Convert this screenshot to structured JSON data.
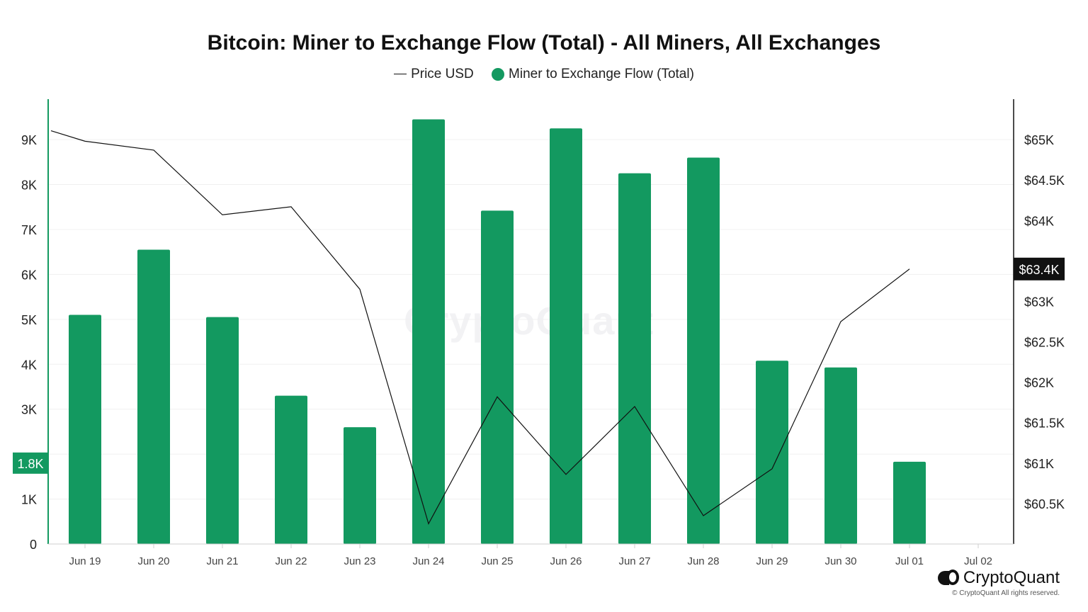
{
  "title": "Bitcoin: Miner to Exchange Flow (Total) - All Miners, All Exchanges",
  "legend": {
    "price_label": "Price USD",
    "flow_label": "Miner to Exchange Flow (Total)"
  },
  "colors": {
    "bar": "#139960",
    "price_line": "#111111",
    "left_axis": "#139960",
    "right_axis": "#111111"
  },
  "watermark": "CryptoQuant",
  "brand": {
    "name": "CryptoQuant",
    "copyright": "© CryptoQuant All rights reserved."
  },
  "chart_data": {
    "type": "bar",
    "title": "Bitcoin: Miner to Exchange Flow (Total) - All Miners, All Exchanges",
    "categories": [
      "Jun 19",
      "Jun 20",
      "Jun 21",
      "Jun 22",
      "Jun 23",
      "Jun 24",
      "Jun 25",
      "Jun 26",
      "Jun 27",
      "Jun 28",
      "Jun 29",
      "Jun 30",
      "Jul 01",
      "Jul 02"
    ],
    "left_axis": {
      "ylim": [
        0,
        9900
      ],
      "ticks": [
        0,
        1000,
        2000,
        3000,
        4000,
        5000,
        6000,
        7000,
        8000,
        9000
      ],
      "tick_labels": [
        "0",
        "1K",
        "",
        "3K",
        "4K",
        "5K",
        "6K",
        "7K",
        "8K",
        "9K"
      ],
      "current_value_label": "1.8K",
      "current_value": 1800
    },
    "right_axis": {
      "ylim": [
        60000,
        65500
      ],
      "ticks": [
        60500,
        61000,
        61500,
        62000,
        62500,
        63000,
        63500,
        64000,
        64500,
        65000
      ],
      "tick_labels": [
        "$60.5K",
        "$61K",
        "$61.5K",
        "$62K",
        "$62.5K",
        "$63K",
        "",
        "$64K",
        "$64.5K",
        "$65K"
      ],
      "current_value_label": "$63.4K",
      "current_value": 63400
    },
    "series": [
      {
        "name": "Miner to Exchange Flow (Total)",
        "type": "bar",
        "axis": "left",
        "values": [
          5100,
          6550,
          5050,
          3300,
          2600,
          9450,
          7420,
          9250,
          8250,
          8600,
          4080,
          3930,
          1830,
          null
        ]
      },
      {
        "name": "Price USD",
        "type": "line",
        "axis": "right",
        "points": [
          {
            "x": "Jun 18 12:00",
            "y": 65110
          },
          {
            "x": "Jun 19",
            "y": 64980
          },
          {
            "x": "Jun 20",
            "y": 64870
          },
          {
            "x": "Jun 21",
            "y": 64070
          },
          {
            "x": "Jun 22",
            "y": 64170
          },
          {
            "x": "Jun 23",
            "y": 63150
          },
          {
            "x": "Jun 24",
            "y": 60250
          },
          {
            "x": "Jun 25",
            "y": 61820
          },
          {
            "x": "Jun 26",
            "y": 60860
          },
          {
            "x": "Jun 27",
            "y": 61700
          },
          {
            "x": "Jun 28",
            "y": 60350
          },
          {
            "x": "Jun 29",
            "y": 60930
          },
          {
            "x": "Jun 30",
            "y": 62750
          },
          {
            "x": "Jul 01",
            "y": 63400
          }
        ]
      }
    ],
    "grid": true,
    "legend_position": "top-center"
  }
}
